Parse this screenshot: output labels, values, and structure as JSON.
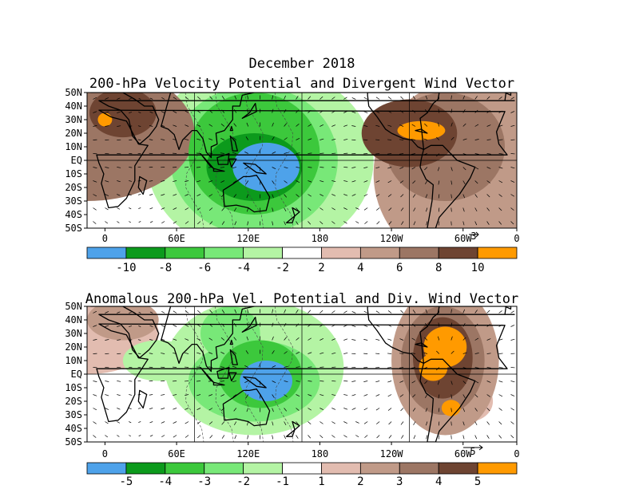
{
  "figure": {
    "title": "December 2018",
    "palette": [
      "#4ea2ea",
      "#0c9a1c",
      "#3cc83c",
      "#78e878",
      "#b4f4a4",
      "#ffffff",
      "#e2bcb0",
      "#c09a88",
      "#9c7664",
      "#6e4432",
      "#ff9a00"
    ],
    "continent_color": "#000000"
  },
  "panels": [
    {
      "id": "top",
      "title": "200-hPa Velocity Potential and Divergent Wind Vector",
      "lat_labels": [
        "50N",
        "40N",
        "30N",
        "20N",
        "10N",
        "EQ",
        "10S",
        "20S",
        "30S",
        "40S",
        "50S"
      ],
      "lon_labels": [
        "0",
        "60E",
        "120E",
        "180",
        "120W",
        "60W",
        "0"
      ],
      "reference_vector": "3",
      "colorbar_labels": [
        "-10",
        "-8",
        "-6",
        "-4",
        "-2",
        "2",
        "4",
        "6",
        "8",
        "10"
      ]
    },
    {
      "id": "bottom",
      "title": "Anomalous 200-hPa Vel. Potential and Div. Wind Vector",
      "lat_labels": [
        "50N",
        "40N",
        "30N",
        "20N",
        "10N",
        "EQ",
        "10S",
        "20S",
        "30S",
        "40S",
        "50S"
      ],
      "lon_labels": [
        "0",
        "60E",
        "120E",
        "180",
        "120W",
        "60W",
        "0"
      ],
      "reference_vector": "5",
      "colorbar_labels": [
        "-5",
        "-4",
        "-3",
        "-2",
        "-1",
        "1",
        "2",
        "3",
        "4",
        "5"
      ]
    }
  ]
}
